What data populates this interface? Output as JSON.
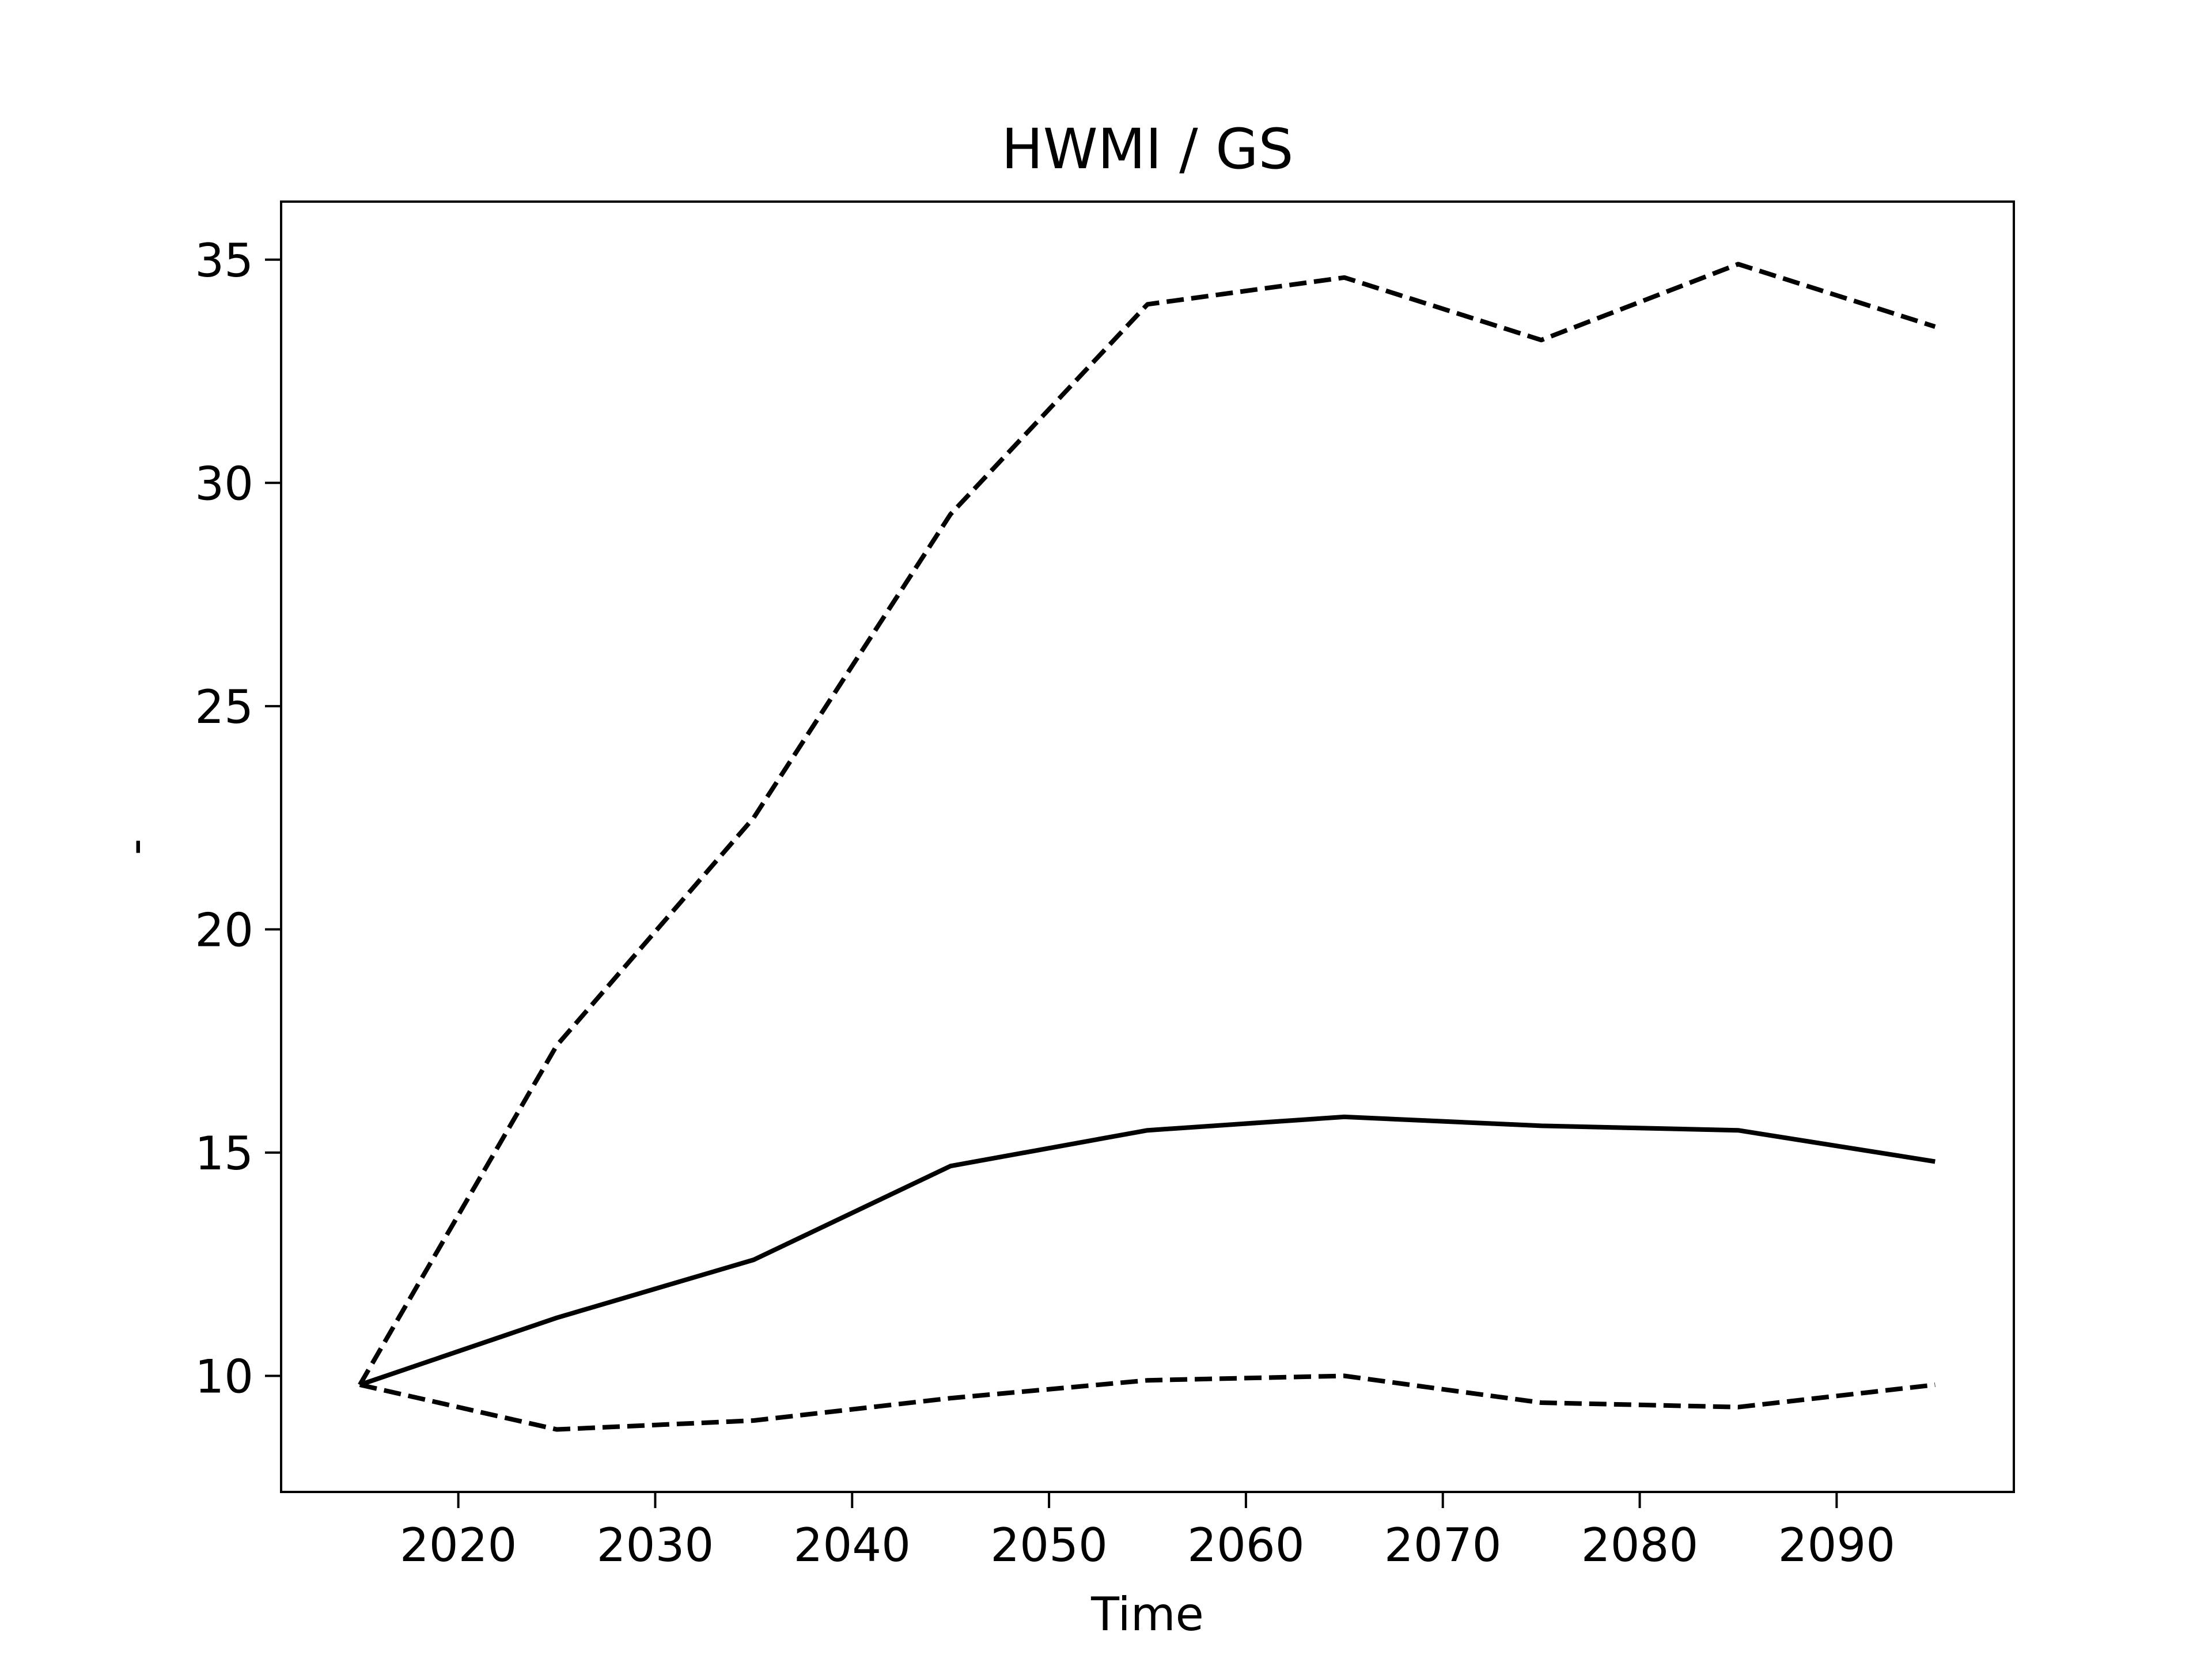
{
  "chart_data": {
    "type": "line",
    "title": "HWMI / GS",
    "xlabel": "Time",
    "ylabel": "-",
    "xlim": [
      2011,
      2099
    ],
    "ylim": [
      7.4,
      36.3
    ],
    "xticks": [
      2020,
      2030,
      2040,
      2050,
      2060,
      2070,
      2080,
      2090
    ],
    "yticks": [
      10,
      15,
      20,
      25,
      30,
      35
    ],
    "x": [
      2015,
      2025,
      2035,
      2045,
      2055,
      2065,
      2075,
      2085,
      2095
    ],
    "grid": false,
    "legend": "none",
    "color": "#000000",
    "series": [
      {
        "style": "dashed",
        "values": [
          9.8,
          17.4,
          22.5,
          29.3,
          34.0,
          34.6,
          33.2,
          34.9,
          33.5
        ]
      },
      {
        "style": "solid",
        "values": [
          9.8,
          11.3,
          12.6,
          14.7,
          15.5,
          15.8,
          15.6,
          15.5,
          14.8
        ]
      },
      {
        "style": "dashed",
        "values": [
          9.8,
          8.8,
          9.0,
          9.5,
          9.9,
          10.0,
          9.4,
          9.3,
          9.8
        ]
      }
    ]
  }
}
